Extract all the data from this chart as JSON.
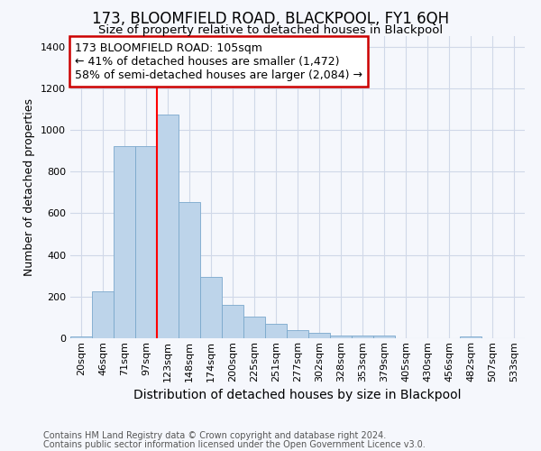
{
  "title": "173, BLOOMFIELD ROAD, BLACKPOOL, FY1 6QH",
  "subtitle": "Size of property relative to detached houses in Blackpool",
  "xlabel": "Distribution of detached houses by size in Blackpool",
  "ylabel": "Number of detached properties",
  "footnote1": "Contains HM Land Registry data © Crown copyright and database right 2024.",
  "footnote2": "Contains public sector information licensed under the Open Government Licence v3.0.",
  "bin_labels": [
    "20sqm",
    "46sqm",
    "71sqm",
    "97sqm",
    "123sqm",
    "148sqm",
    "174sqm",
    "200sqm",
    "225sqm",
    "251sqm",
    "277sqm",
    "302sqm",
    "328sqm",
    "353sqm",
    "379sqm",
    "405sqm",
    "430sqm",
    "456sqm",
    "482sqm",
    "507sqm",
    "533sqm"
  ],
  "bar_heights": [
    10,
    225,
    920,
    920,
    1075,
    655,
    295,
    160,
    105,
    70,
    40,
    25,
    15,
    15,
    15,
    0,
    0,
    0,
    10,
    0,
    0
  ],
  "bar_color": "#bdd4ea",
  "bar_edge_color": "#7aa8cc",
  "ylim": [
    0,
    1450
  ],
  "yticks": [
    0,
    200,
    400,
    600,
    800,
    1000,
    1200,
    1400
  ],
  "red_line_x": 3.5,
  "annotation_line1": "173 BLOOMFIELD ROAD: 105sqm",
  "annotation_line2": "← 41% of detached houses are smaller (1,472)",
  "annotation_line3": "58% of semi-detached houses are larger (2,084) →",
  "annotation_box_color": "#cc0000",
  "background_color": "#f5f7fc",
  "grid_color": "#d0d8e8",
  "title_fontsize": 12,
  "subtitle_fontsize": 9.5,
  "annotation_fontsize": 9,
  "xlabel_fontsize": 10,
  "ylabel_fontsize": 9,
  "tick_fontsize": 8,
  "footnote_fontsize": 7
}
